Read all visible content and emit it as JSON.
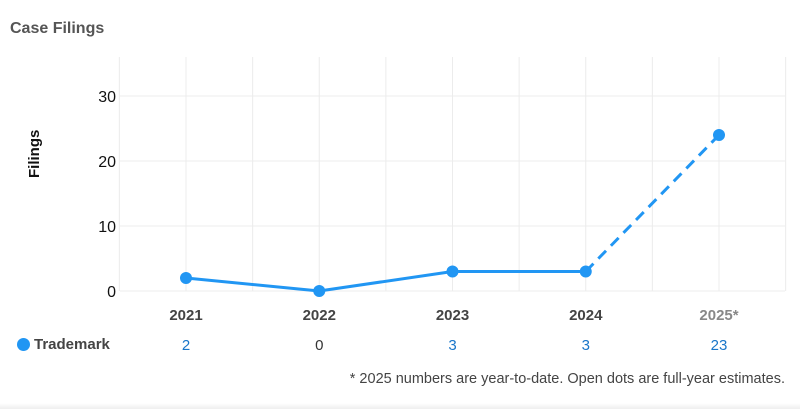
{
  "card": {
    "title": "Case Filings"
  },
  "chart_data": {
    "type": "line",
    "ylabel": "Filings",
    "xlabel": "",
    "ylim": [
      0,
      36
    ],
    "yticks": [
      0,
      10,
      20,
      30
    ],
    "grid": true,
    "categories": [
      "2021",
      "2022",
      "2023",
      "2024",
      "2025*"
    ],
    "series": [
      {
        "name": "Trademark",
        "color": "#2196f3",
        "values": [
          2,
          0,
          3,
          3,
          24
        ],
        "dashed_from_index": 3
      }
    ],
    "table": {
      "row_label": "Trademark",
      "counts": [
        "2",
        "0",
        "3",
        "3",
        "23"
      ]
    },
    "footnote": "* 2025 numbers are year-to-date. Open dots are full-year estimates."
  },
  "colors": {
    "series": "#2196f3",
    "count_link": "#1976c9",
    "count_zero": "#333333",
    "grid": "#ececec",
    "future_tick": "#888888"
  }
}
